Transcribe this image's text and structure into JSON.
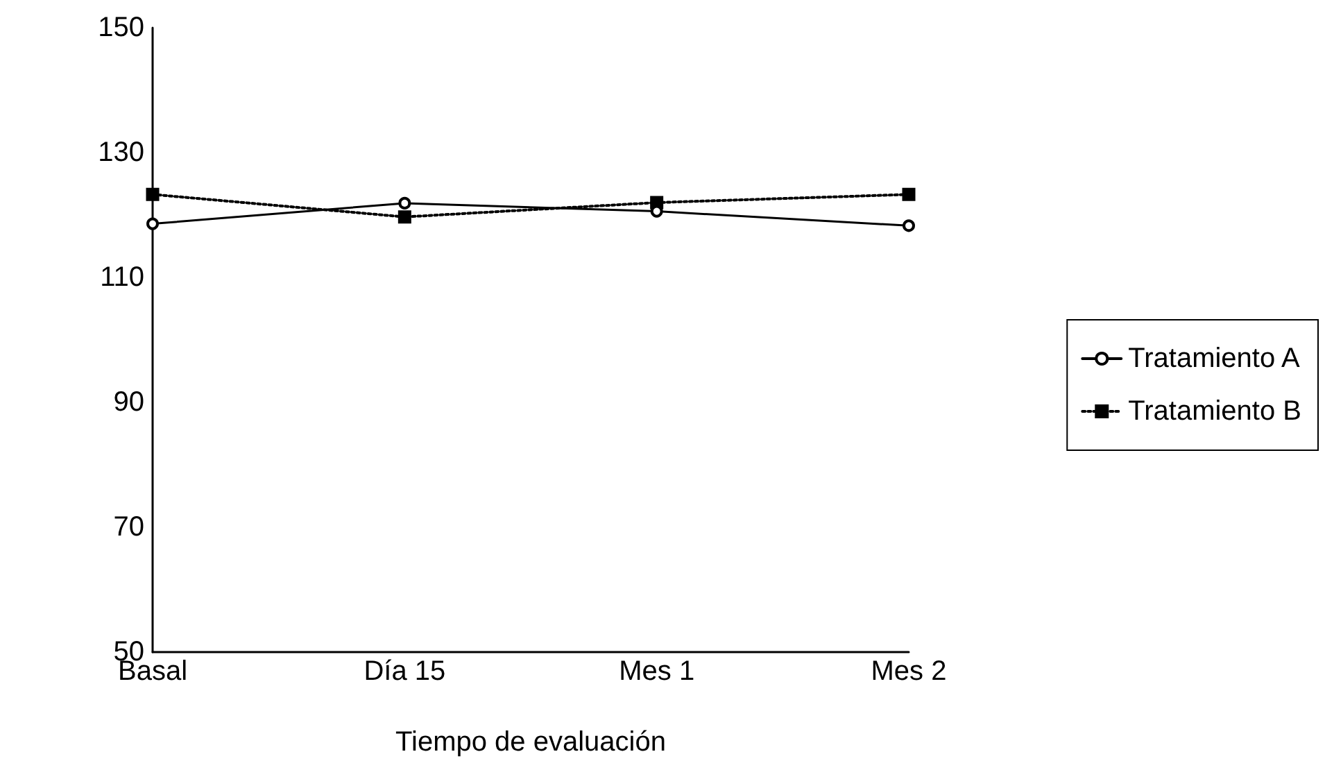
{
  "chart_data": {
    "type": "line",
    "xlabel": "Tiempo de evaluación",
    "categories": [
      "Basal",
      "Día 15",
      "Mes 1",
      "Mes 2"
    ],
    "series": [
      {
        "name": "Tratamiento A",
        "color": "#000000",
        "values": [
          118.6,
          121.9,
          120.6,
          118.3
        ],
        "marker": "circle",
        "line_style": "solid"
      },
      {
        "name": "Tratamiento B",
        "color": "#000000",
        "values": [
          123.3,
          119.7,
          122.0,
          123.3
        ],
        "marker": "square",
        "line_style": "dotted"
      }
    ],
    "ylim": [
      50,
      150
    ],
    "yticks": [
      50,
      70,
      90,
      110,
      130,
      150
    ],
    "grid": false,
    "legend": "right"
  }
}
